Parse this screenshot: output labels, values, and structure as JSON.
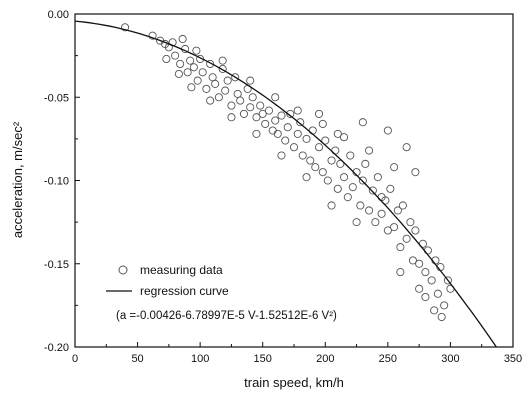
{
  "chart_data": {
    "type": "scatter",
    "xlabel": "train speed, km/h",
    "ylabel": "acceleration, m/sec²",
    "xlim": [
      0,
      350
    ],
    "ylim": [
      -0.2,
      0.0
    ],
    "xticks": [
      0,
      50,
      100,
      150,
      200,
      250,
      300,
      350
    ],
    "xtick_labels": [
      "0",
      "50",
      "100",
      "150",
      "200",
      "250",
      "300",
      "350"
    ],
    "yticks": [
      0.0,
      -0.05,
      -0.1,
      -0.15,
      -0.2
    ],
    "ytick_labels": [
      "0.00",
      "-0.05",
      "-0.10",
      "-0.15",
      "-0.20"
    ],
    "grid": false,
    "legend": {
      "placement": "bottom-left",
      "entries": [
        {
          "label": "measuring data",
          "marker": "open-circle"
        },
        {
          "label": "regression curve",
          "marker": "line"
        }
      ]
    },
    "equation": "(a =-0.00426-6.78997E-5 V-1.52512E-6 V²)",
    "regression": {
      "intercept": -0.00426,
      "linear": -6.78997e-05,
      "quadratic": -1.52512e-06
    },
    "series": [
      {
        "name": "measuring data",
        "kind": "scatter",
        "marker": "open-circle",
        "color": "#555555",
        "points": [
          [
            40,
            -0.008
          ],
          [
            62,
            -0.013
          ],
          [
            68,
            -0.016
          ],
          [
            72,
            -0.018
          ],
          [
            75,
            -0.02
          ],
          [
            78,
            -0.017
          ],
          [
            80,
            -0.025
          ],
          [
            84,
            -0.03
          ],
          [
            88,
            -0.021
          ],
          [
            90,
            -0.035
          ],
          [
            92,
            -0.028
          ],
          [
            95,
            -0.032
          ],
          [
            98,
            -0.04
          ],
          [
            100,
            -0.027
          ],
          [
            102,
            -0.035
          ],
          [
            105,
            -0.045
          ],
          [
            108,
            -0.03
          ],
          [
            110,
            -0.038
          ],
          [
            112,
            -0.042
          ],
          [
            115,
            -0.05
          ],
          [
            118,
            -0.033
          ],
          [
            120,
            -0.046
          ],
          [
            122,
            -0.04
          ],
          [
            125,
            -0.055
          ],
          [
            128,
            -0.038
          ],
          [
            130,
            -0.048
          ],
          [
            132,
            -0.052
          ],
          [
            135,
            -0.06
          ],
          [
            138,
            -0.045
          ],
          [
            140,
            -0.056
          ],
          [
            142,
            -0.05
          ],
          [
            145,
            -0.062
          ],
          [
            148,
            -0.055
          ],
          [
            150,
            -0.06
          ],
          [
            152,
            -0.066
          ],
          [
            155,
            -0.058
          ],
          [
            158,
            -0.07
          ],
          [
            160,
            -0.064
          ],
          [
            162,
            -0.072
          ],
          [
            165,
            -0.061
          ],
          [
            168,
            -0.076
          ],
          [
            170,
            -0.068
          ],
          [
            172,
            -0.06
          ],
          [
            175,
            -0.08
          ],
          [
            178,
            -0.072
          ],
          [
            180,
            -0.065
          ],
          [
            182,
            -0.085
          ],
          [
            185,
            -0.075
          ],
          [
            188,
            -0.088
          ],
          [
            190,
            -0.07
          ],
          [
            192,
            -0.092
          ],
          [
            195,
            -0.08
          ],
          [
            198,
            -0.095
          ],
          [
            200,
            -0.076
          ],
          [
            202,
            -0.1
          ],
          [
            205,
            -0.088
          ],
          [
            208,
            -0.082
          ],
          [
            210,
            -0.105
          ],
          [
            212,
            -0.09
          ],
          [
            215,
            -0.098
          ],
          [
            218,
            -0.11
          ],
          [
            220,
            -0.085
          ],
          [
            222,
            -0.104
          ],
          [
            225,
            -0.095
          ],
          [
            228,
            -0.115
          ],
          [
            230,
            -0.1
          ],
          [
            232,
            -0.09
          ],
          [
            235,
            -0.118
          ],
          [
            238,
            -0.106
          ],
          [
            240,
            -0.125
          ],
          [
            242,
            -0.098
          ],
          [
            245,
            -0.12
          ],
          [
            248,
            -0.112
          ],
          [
            250,
            -0.13
          ],
          [
            252,
            -0.105
          ],
          [
            255,
            -0.128
          ],
          [
            258,
            -0.118
          ],
          [
            260,
            -0.14
          ],
          [
            262,
            -0.115
          ],
          [
            265,
            -0.135
          ],
          [
            268,
            -0.125
          ],
          [
            270,
            -0.148
          ],
          [
            272,
            -0.13
          ],
          [
            275,
            -0.15
          ],
          [
            278,
            -0.138
          ],
          [
            280,
            -0.155
          ],
          [
            282,
            -0.142
          ],
          [
            285,
            -0.16
          ],
          [
            288,
            -0.148
          ],
          [
            290,
            -0.168
          ],
          [
            292,
            -0.152
          ],
          [
            295,
            -0.175
          ],
          [
            298,
            -0.16
          ],
          [
            300,
            -0.165
          ],
          [
            265,
            -0.08
          ],
          [
            272,
            -0.095
          ],
          [
            250,
            -0.07
          ],
          [
            230,
            -0.065
          ],
          [
            210,
            -0.072
          ],
          [
            195,
            -0.06
          ],
          [
            245,
            -0.11
          ],
          [
            260,
            -0.155
          ],
          [
            275,
            -0.165
          ],
          [
            287,
            -0.178
          ],
          [
            293,
            -0.182
          ],
          [
            280,
            -0.17
          ],
          [
            225,
            -0.125
          ],
          [
            205,
            -0.115
          ],
          [
            185,
            -0.098
          ],
          [
            165,
            -0.085
          ],
          [
            145,
            -0.072
          ],
          [
            125,
            -0.062
          ],
          [
            108,
            -0.052
          ],
          [
            93,
            -0.044
          ],
          [
            83,
            -0.036
          ],
          [
            73,
            -0.027
          ],
          [
            86,
            -0.015
          ],
          [
            97,
            -0.022
          ],
          [
            118,
            -0.028
          ],
          [
            140,
            -0.04
          ],
          [
            160,
            -0.05
          ],
          [
            178,
            -0.058
          ],
          [
            198,
            -0.066
          ],
          [
            215,
            -0.074
          ],
          [
            235,
            -0.082
          ],
          [
            255,
            -0.092
          ]
        ]
      },
      {
        "name": "regression curve",
        "kind": "line",
        "color": "#111111"
      }
    ]
  }
}
